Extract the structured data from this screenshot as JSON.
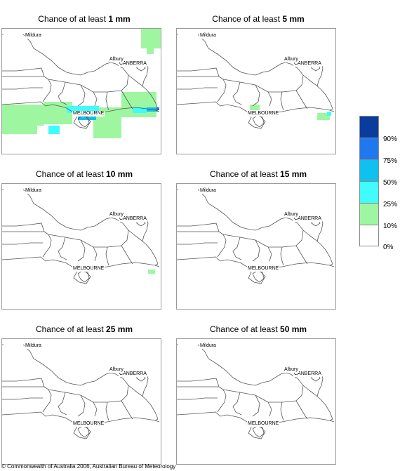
{
  "panels": [
    {
      "prefix": "Chance of at least ",
      "value": "1 mm"
    },
    {
      "prefix": "Chance of at least ",
      "value": "5 mm"
    },
    {
      "prefix": "Chance of at least ",
      "value": "10 mm"
    },
    {
      "prefix": "Chance of at least ",
      "value": "15 mm"
    },
    {
      "prefix": "Chance of at least ",
      "value": "25 mm"
    },
    {
      "prefix": "Chance of at least ",
      "value": "50 mm"
    }
  ],
  "cities": {
    "mildura": "Mildura",
    "canberra": "CANBERRA",
    "albury": "Albury",
    "melbourne": "MELBOURNE"
  },
  "legend": {
    "labels": [
      "90%",
      "75%",
      "50%",
      "25%",
      "10%",
      "0%"
    ],
    "colors": [
      "#0a3c9e",
      "#1f78f0",
      "#10c0ee",
      "#40fcfc",
      "#9ef7a0",
      "#ffffff"
    ]
  },
  "copyright": "© Commonwealth of Australia 2006, Australian Bureau of Meteorology"
}
